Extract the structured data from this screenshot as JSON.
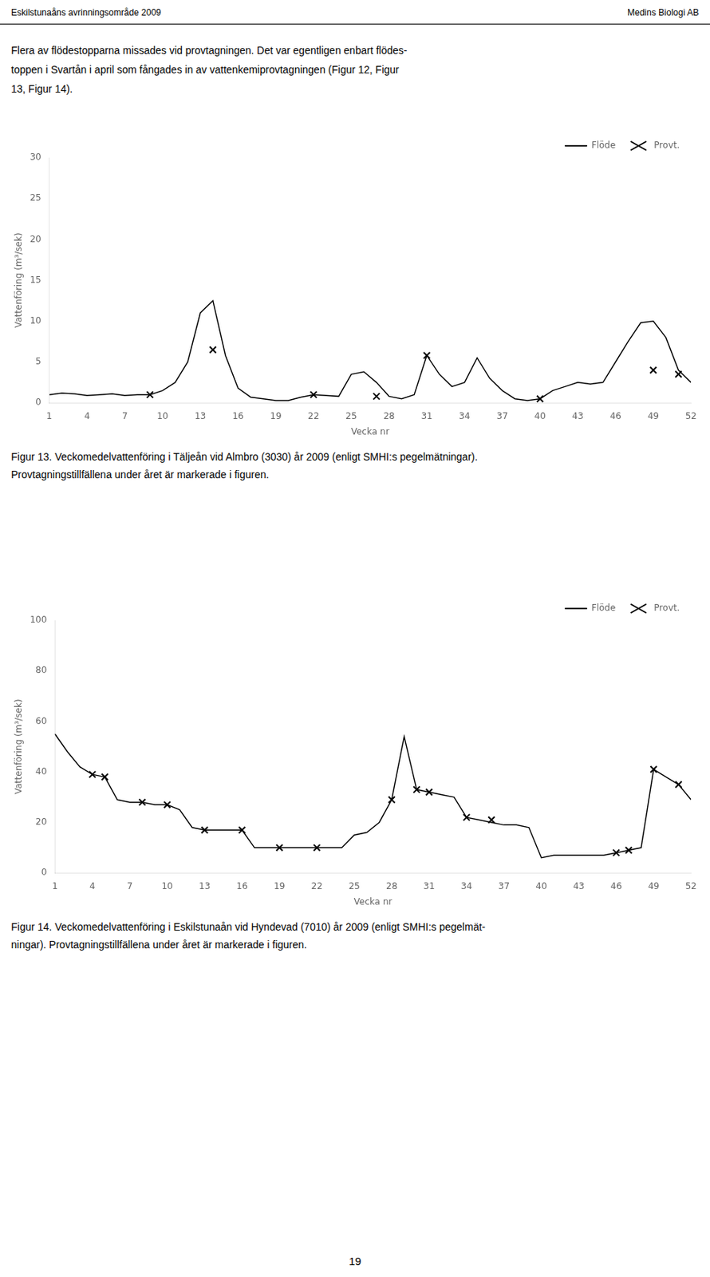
{
  "header_left": "Eskilstunaåns avrinningsområde 2009",
  "header_right": "Medins Biologi AB",
  "text": [
    "Flera av flödestopparna missades vid provtagningen. Det var egentligen enbart flödes-",
    "toppen i Svartån i april som fångades in av vattenkemiprovtagningen (Figur 12, Figur",
    "13, Figur 14)."
  ],
  "page_number": "19",
  "chart_data": [
    {
      "type": "line",
      "xlabel": "Vecka nr",
      "ylabel": "Vattenföring (m³/sek)",
      "caption": [
        "Figur 13. Veckomedelvattenföring i Täljeån vid Almbro (3030) år 2009 (enligt SMHI:s pegelmätningar).",
        "Provtagningstillfällena under året är markerade i figuren."
      ],
      "xlim": [
        1,
        52
      ],
      "xticks": [
        1,
        4,
        7,
        10,
        13,
        16,
        19,
        22,
        25,
        28,
        31,
        34,
        37,
        40,
        43,
        46,
        49,
        52
      ],
      "ylim": [
        0,
        30
      ],
      "yticks": [
        0,
        5,
        10,
        15,
        20,
        25,
        30
      ],
      "grid": false,
      "legend": "upper right",
      "series": [
        {
          "name": "Flöde",
          "type": "line",
          "color": "#000000",
          "x": [
            1,
            2,
            3,
            4,
            5,
            6,
            7,
            8,
            9,
            10,
            11,
            12,
            13,
            14,
            15,
            16,
            17,
            18,
            19,
            20,
            21,
            22,
            23,
            24,
            25,
            26,
            27,
            28,
            29,
            30,
            31,
            32,
            33,
            34,
            35,
            36,
            37,
            38,
            39,
            40,
            41,
            42,
            43,
            44,
            45,
            46,
            47,
            48,
            49,
            50,
            51,
            52
          ],
          "values": [
            1.0,
            1.2,
            1.1,
            0.9,
            1.0,
            1.1,
            0.9,
            1.0,
            1.0,
            1.5,
            2.5,
            5.0,
            11.0,
            12.5,
            5.8,
            1.8,
            0.7,
            0.5,
            0.3,
            0.3,
            0.7,
            1.0,
            0.9,
            0.8,
            3.5,
            3.8,
            2.5,
            0.8,
            0.5,
            1.0,
            5.8,
            3.5,
            2.0,
            2.5,
            5.5,
            3.0,
            1.5,
            0.5,
            0.3,
            0.5,
            1.5,
            2.0,
            2.5,
            2.3,
            2.5,
            5.0,
            7.5,
            9.8,
            10.0,
            8.0,
            4.0,
            2.5
          ]
        },
        {
          "name": "Provt.",
          "type": "scatter",
          "marker": "x",
          "color": "#000000",
          "x": [
            9,
            14,
            22,
            27,
            31,
            40,
            49,
            51
          ],
          "values": [
            1.0,
            6.5,
            1.0,
            0.8,
            5.8,
            0.5,
            4.0,
            3.5
          ]
        }
      ]
    },
    {
      "type": "line",
      "xlabel": "Vecka nr",
      "ylabel": "Vattenföring (m³/sek)",
      "caption": [
        "Figur 14. Veckomedelvattenföring i Eskilstunaån vid Hyndevad (7010) år 2009 (enligt SMHI:s pegelmät-",
        "ningar). Provtagningstillfällena under året är markerade i figuren."
      ],
      "xlim": [
        1,
        52
      ],
      "xticks": [
        1,
        4,
        7,
        10,
        13,
        16,
        19,
        22,
        25,
        28,
        31,
        34,
        37,
        40,
        43,
        46,
        49,
        52
      ],
      "ylim": [
        0,
        100
      ],
      "yticks": [
        0,
        20,
        40,
        60,
        80,
        100
      ],
      "grid": false,
      "legend": "upper right",
      "series": [
        {
          "name": "Flöde",
          "type": "line",
          "color": "#000000",
          "x": [
            1,
            2,
            3,
            4,
            5,
            6,
            7,
            8,
            9,
            10,
            11,
            12,
            13,
            14,
            15,
            16,
            17,
            18,
            19,
            20,
            21,
            22,
            23,
            24,
            25,
            26,
            27,
            28,
            29,
            30,
            31,
            32,
            33,
            34,
            35,
            36,
            37,
            38,
            39,
            40,
            41,
            42,
            43,
            44,
            45,
            46,
            47,
            48,
            49,
            50,
            51,
            52
          ],
          "values": [
            55,
            48,
            42,
            39,
            38,
            29,
            28,
            28,
            27,
            27,
            25,
            18,
            17,
            17,
            17,
            17,
            10,
            10,
            10,
            10,
            10,
            10,
            10,
            10,
            15,
            16,
            20,
            29,
            54,
            33,
            32,
            31,
            30,
            22,
            21,
            20,
            19,
            19,
            18,
            6,
            7,
            7,
            7,
            7,
            7,
            8,
            9,
            10,
            41,
            38,
            35,
            29
          ]
        },
        {
          "name": "Provt.",
          "type": "scatter",
          "marker": "x",
          "color": "#000000",
          "x": [
            4,
            5,
            8,
            10,
            13,
            16,
            19,
            22,
            28,
            30,
            31,
            34,
            36,
            46,
            47,
            49,
            51
          ],
          "values": [
            39,
            38,
            28,
            27,
            17,
            17,
            10,
            10,
            29,
            33,
            32,
            22,
            21,
            8,
            9,
            41,
            35
          ]
        }
      ]
    }
  ]
}
